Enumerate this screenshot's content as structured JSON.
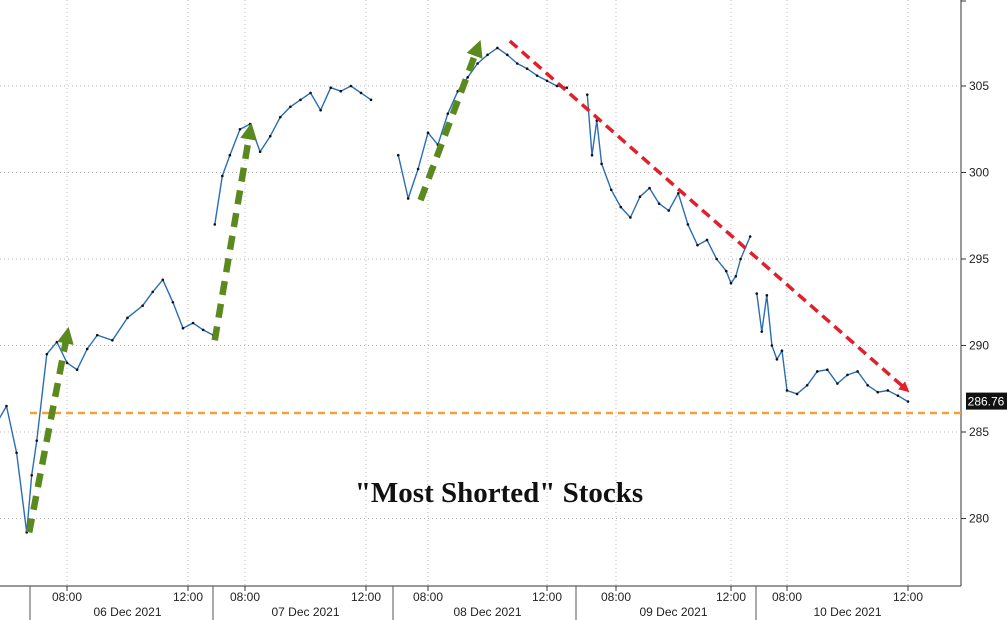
{
  "chart_data": {
    "type": "line",
    "title": "\"Most Shorted\" Stocks",
    "xlabel": "",
    "ylabel": "",
    "ylim": [
      276,
      309
    ],
    "y_ticks": [
      280,
      285,
      290,
      295,
      300,
      305
    ],
    "y_tick_labels": [
      "280",
      "285",
      "290",
      "295",
      "300",
      "305"
    ],
    "last_value": 286.76,
    "last_value_label": "286.76",
    "reference_level": 286.1,
    "grid": true,
    "days": [
      {
        "label": "06 Dec 2021",
        "hour_ticks": [
          "08:00",
          "12:00"
        ]
      },
      {
        "label": "07 Dec 2021",
        "hour_ticks": [
          "08:00",
          "12:00"
        ]
      },
      {
        "label": "08 Dec 2021",
        "hour_ticks": [
          "08:00",
          "12:00"
        ]
      },
      {
        "label": "09 Dec 2021",
        "hour_ticks": [
          "08:00",
          "12:00"
        ]
      },
      {
        "label": "10 Dec 2021",
        "hour_ticks": [
          "08:00",
          "12:00"
        ]
      }
    ],
    "series": [
      {
        "color": "#2a6db5",
        "segments": [
          {
            "day": "06 Dec 2021",
            "time": [
              "05:00",
              "05:30",
              "06:00",
              "06:20",
              "06:40",
              "06:50",
              "07:00",
              "07:20",
              "07:40",
              "08:00",
              "08:20",
              "08:40",
              "09:00",
              "09:30",
              "10:00",
              "10:30",
              "10:50",
              "11:10",
              "11:30",
              "11:50",
              "12:10",
              "12:30",
              "12:50"
            ],
            "values": [
              283.0,
              285.0,
              286.5,
              283.8,
              279.2,
              282.5,
              284.5,
              289.5,
              290.2,
              289.0,
              288.6,
              289.8,
              290.6,
              290.3,
              291.6,
              292.3,
              293.1,
              293.8,
              292.5,
              291.0,
              291.3,
              290.9,
              290.6
            ]
          },
          {
            "day": "07 Dec 2021",
            "time": [
              "07:00",
              "07:15",
              "07:30",
              "07:50",
              "08:10",
              "08:30",
              "08:50",
              "09:10",
              "09:30",
              "09:50",
              "10:10",
              "10:30",
              "10:50",
              "11:10",
              "11:30",
              "11:50",
              "12:10"
            ],
            "values": [
              297.0,
              299.8,
              301.0,
              302.5,
              302.8,
              301.2,
              302.1,
              303.2,
              303.8,
              304.2,
              304.6,
              303.6,
              304.9,
              304.7,
              305.0,
              304.6,
              304.2
            ]
          },
          {
            "day": "08 Dec 2021",
            "time": [
              "07:00",
              "07:20",
              "07:40",
              "08:00",
              "08:20",
              "08:40",
              "09:00",
              "09:20",
              "09:40",
              "10:00",
              "10:20",
              "10:40",
              "11:00",
              "11:20",
              "11:40",
              "12:00",
              "12:20",
              "12:40"
            ],
            "values": [
              301.0,
              298.5,
              300.2,
              302.3,
              301.6,
              303.4,
              304.7,
              305.5,
              306.3,
              306.8,
              307.2,
              306.8,
              306.3,
              306.0,
              305.6,
              305.3,
              305.0,
              304.9
            ]
          },
          {
            "day": "09 Dec 2021",
            "time": [
              "07:00",
              "07:10",
              "07:20",
              "07:30",
              "07:50",
              "08:10",
              "08:30",
              "08:50",
              "09:10",
              "09:30",
              "09:50",
              "10:10",
              "10:30",
              "10:50",
              "11:10",
              "11:30",
              "11:50",
              "12:00",
              "12:10",
              "12:20",
              "12:40"
            ],
            "values": [
              304.5,
              301.0,
              303.0,
              300.5,
              299.0,
              298.0,
              297.4,
              298.6,
              299.1,
              298.2,
              297.8,
              298.8,
              297.0,
              295.8,
              296.1,
              295.0,
              294.3,
              293.6,
              294.0,
              295.0,
              296.3
            ]
          },
          {
            "day": "10 Dec 2021",
            "time": [
              "07:00",
              "07:10",
              "07:20",
              "07:30",
              "07:40",
              "07:50",
              "08:00",
              "08:20",
              "08:40",
              "09:00",
              "09:20",
              "09:40",
              "10:00",
              "10:20",
              "10:40",
              "11:00",
              "11:20",
              "11:40",
              "12:00"
            ],
            "values": [
              293.0,
              290.8,
              292.9,
              290.0,
              289.2,
              289.7,
              287.4,
              287.2,
              287.7,
              288.5,
              288.6,
              287.8,
              288.3,
              288.5,
              287.7,
              287.3,
              287.4,
              287.1,
              286.76
            ]
          }
        ]
      }
    ],
    "annotations": [
      {
        "kind": "arrow",
        "color": "#5a8a1e",
        "style": "dashed",
        "from": {
          "day": "06 Dec 2021",
          "time": "06:45",
          "value": 279.2
        },
        "to": {
          "day": "06 Dec 2021",
          "time": "08:00",
          "value": 290.6
        }
      },
      {
        "kind": "arrow",
        "color": "#5a8a1e",
        "style": "dashed",
        "from": {
          "day": "07 Dec 2021",
          "time": "07:00",
          "value": 290.3
        },
        "to": {
          "day": "07 Dec 2021",
          "time": "08:10",
          "value": 302.4
        }
      },
      {
        "kind": "arrow",
        "color": "#5a8a1e",
        "style": "dashed",
        "from": {
          "day": "08 Dec 2021",
          "time": "07:45",
          "value": 298.4
        },
        "to": {
          "day": "08 Dec 2021",
          "time": "09:40",
          "value": 307.2
        }
      },
      {
        "kind": "arrow",
        "color": "#e0202a",
        "style": "dashed",
        "from": {
          "day": "08 Dec 2021",
          "time": "10:45",
          "value": 307.6
        },
        "to": {
          "day": "10 Dec 2021",
          "time": "11:55",
          "value": 287.5
        }
      }
    ],
    "reference_line_color": "#f5a040",
    "last_label_background": "#111111"
  }
}
